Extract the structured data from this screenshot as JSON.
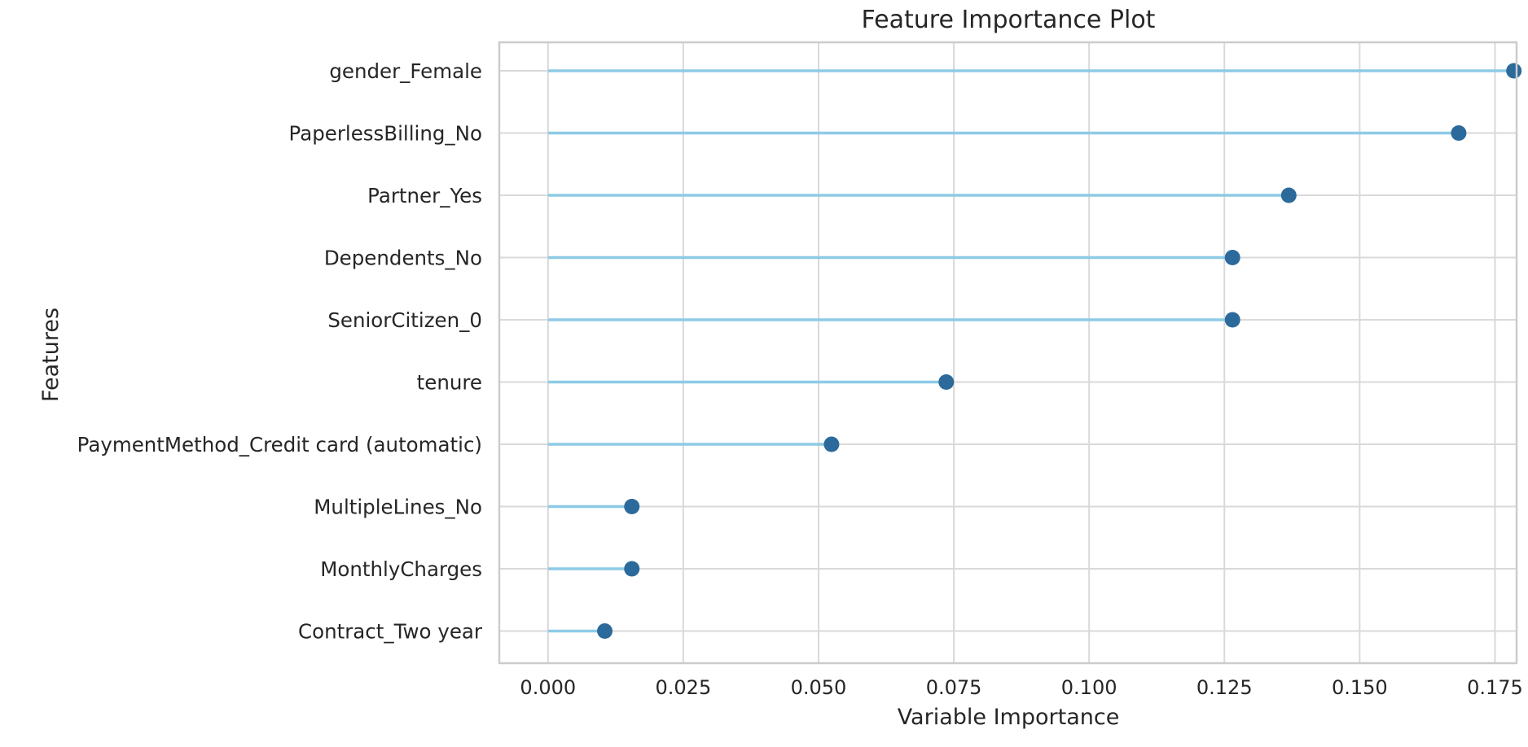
{
  "chart_data": {
    "type": "lollipop",
    "title": "Feature Importance Plot",
    "xlabel": "Variable Importance",
    "ylabel": "Features",
    "xlim": [
      -0.009,
      0.179
    ],
    "xticks": [
      "0.000",
      "0.025",
      "0.050",
      "0.075",
      "0.100",
      "0.125",
      "0.150",
      "0.175"
    ],
    "grid": true,
    "features": [
      "gender_Female",
      "PaperlessBilling_No",
      "Partner_Yes",
      "Dependents_No",
      "SeniorCitizen_0",
      "tenure",
      "PaymentMethod_Credit card (automatic)",
      "MultipleLines_No",
      "MonthlyCharges",
      "Contract_Two year"
    ],
    "values": [
      0.1785,
      0.1683,
      0.1369,
      0.1265,
      0.1265,
      0.0736,
      0.0524,
      0.0155,
      0.0155,
      0.0105
    ],
    "colors": {
      "stem": "#8ecae6",
      "marker": "#2b6a9b",
      "grid": "#d9d9d9",
      "axes_frame": "#cccccc",
      "text": "#262626"
    }
  }
}
